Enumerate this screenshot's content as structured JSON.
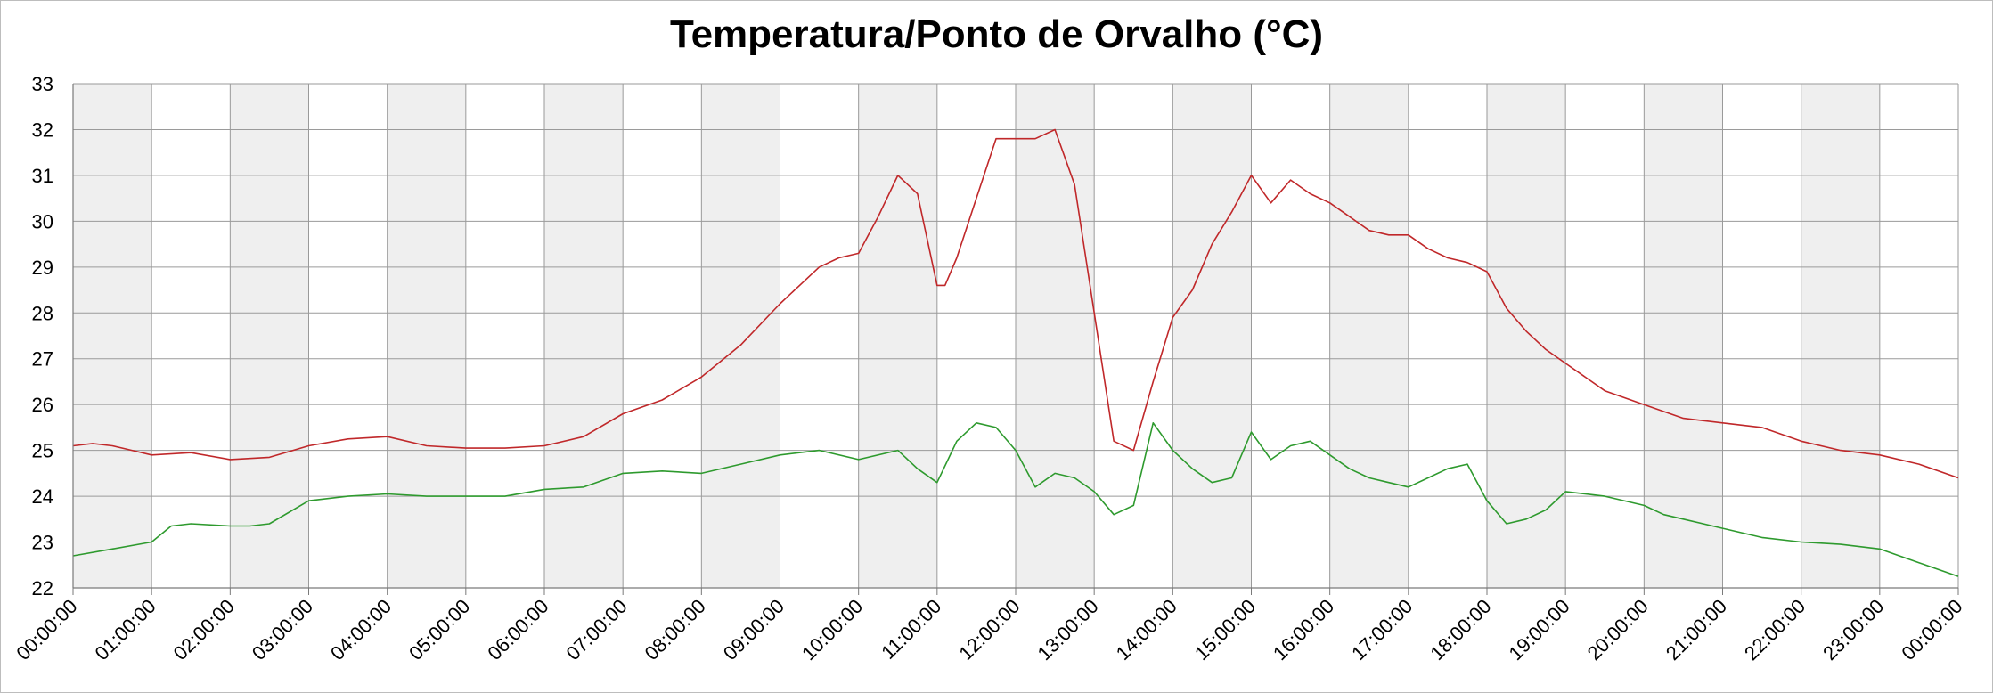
{
  "chart_data": {
    "type": "line",
    "title": "Temperatura/Ponto de Orvalho (°C)",
    "xlabel": "",
    "ylabel": "",
    "ylim": [
      22,
      33
    ],
    "y_ticks": [
      "22",
      "23",
      "24",
      "25",
      "26",
      "27",
      "28",
      "29",
      "30",
      "31",
      "32",
      "33"
    ],
    "x_ticks": [
      "00:00:00",
      "01:00:00",
      "02:00:00",
      "03:00:00",
      "04:00:00",
      "05:00:00",
      "06:00:00",
      "07:00:00",
      "08:00:00",
      "09:00:00",
      "10:00:00",
      "11:00:00",
      "12:00:00",
      "13:00:00",
      "14:00:00",
      "15:00:00",
      "16:00:00",
      "17:00:00",
      "18:00:00",
      "19:00:00",
      "20:00:00",
      "21:00:00",
      "22:00:00",
      "23:00:00",
      "00:00:00"
    ],
    "x_unit": "hours",
    "grid": true,
    "alternating_bands": true,
    "legend": "none",
    "series": [
      {
        "color": "#c0282a",
        "x": [
          0,
          0.25,
          0.5,
          0.75,
          1,
          1.5,
          2,
          2.5,
          3,
          3.5,
          4,
          4.5,
          5,
          5.5,
          6,
          6.5,
          7,
          7.5,
          8,
          8.5,
          9,
          9.25,
          9.5,
          9.75,
          10,
          10.25,
          10.5,
          10.75,
          11,
          11.1,
          11.25,
          11.5,
          11.75,
          12,
          12.25,
          12.5,
          12.75,
          13,
          13.25,
          13.5,
          13.75,
          14,
          14.25,
          14.5,
          14.75,
          15,
          15.25,
          15.5,
          15.75,
          16,
          16.25,
          16.5,
          16.75,
          17,
          17.25,
          17.5,
          17.75,
          18,
          18.25,
          18.5,
          18.75,
          19,
          19.5,
          20,
          20.5,
          21,
          21.5,
          22,
          22.5,
          23,
          23.5,
          24
        ],
        "values": [
          25.1,
          25.15,
          25.1,
          25.0,
          24.9,
          24.95,
          24.8,
          24.85,
          25.1,
          25.25,
          25.3,
          25.1,
          25.05,
          25.05,
          25.1,
          25.3,
          25.8,
          26.1,
          26.6,
          27.3,
          28.2,
          28.6,
          29.0,
          29.2,
          29.3,
          30.1,
          31.0,
          30.6,
          28.6,
          28.6,
          29.2,
          30.5,
          31.8,
          31.8,
          31.8,
          32.0,
          30.8,
          28.0,
          25.2,
          25.0,
          26.5,
          27.9,
          28.5,
          29.5,
          30.2,
          31.0,
          30.4,
          30.9,
          30.6,
          30.4,
          30.1,
          29.8,
          29.7,
          29.7,
          29.4,
          29.2,
          29.1,
          28.9,
          28.1,
          27.6,
          27.2,
          26.9,
          26.3,
          26.0,
          25.7,
          25.6,
          25.5,
          25.2,
          25.0,
          24.9,
          24.7,
          24.4
        ]
      },
      {
        "color": "#2e9a2e",
        "x": [
          0,
          0.5,
          1,
          1.25,
          1.5,
          2,
          2.25,
          2.5,
          3,
          3.5,
          4,
          4.5,
          5,
          5.5,
          6,
          6.5,
          7,
          7.5,
          8,
          8.5,
          9,
          9.5,
          10,
          10.5,
          10.75,
          11,
          11.25,
          11.5,
          11.75,
          12,
          12.25,
          12.5,
          12.75,
          13,
          13.25,
          13.5,
          13.75,
          14,
          14.25,
          14.5,
          14.75,
          15,
          15.25,
          15.5,
          15.75,
          16,
          16.25,
          16.5,
          16.75,
          17,
          17.25,
          17.5,
          17.75,
          18,
          18.25,
          18.5,
          18.75,
          19,
          19.5,
          20,
          20.25,
          20.5,
          21,
          21.5,
          22,
          22.5,
          23,
          23.5,
          24
        ],
        "values": [
          22.7,
          22.85,
          23.0,
          23.35,
          23.4,
          23.35,
          23.35,
          23.4,
          23.9,
          24.0,
          24.05,
          24.0,
          24.0,
          24.0,
          24.15,
          24.2,
          24.5,
          24.55,
          24.5,
          24.7,
          24.9,
          25.0,
          24.8,
          25.0,
          24.6,
          24.3,
          25.2,
          25.6,
          25.5,
          25.0,
          24.2,
          24.5,
          24.4,
          24.1,
          23.6,
          23.8,
          25.6,
          25.0,
          24.6,
          24.3,
          24.4,
          25.4,
          24.8,
          25.1,
          25.2,
          24.9,
          24.6,
          24.4,
          24.3,
          24.2,
          24.4,
          24.6,
          24.7,
          23.9,
          23.4,
          23.5,
          23.7,
          24.1,
          24.0,
          23.8,
          23.6,
          23.5,
          23.3,
          23.1,
          23.0,
          22.95,
          22.85,
          22.55,
          22.25
        ]
      }
    ]
  }
}
